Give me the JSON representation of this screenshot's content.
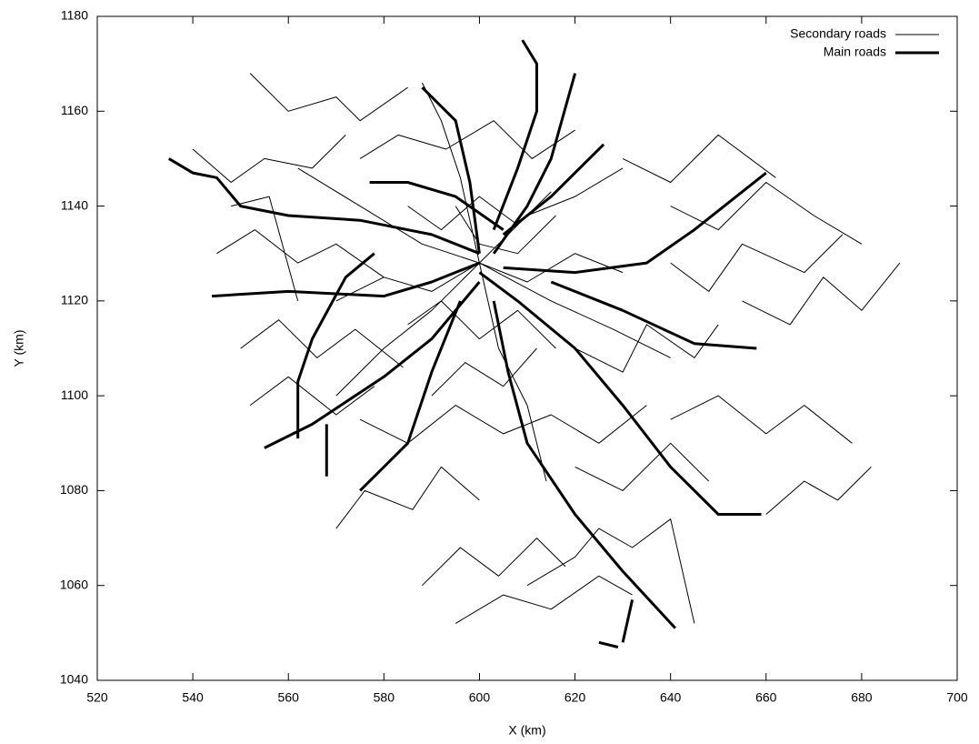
{
  "chart_data": {
    "type": "line",
    "xlabel": "X (km)",
    "ylabel": "Y (km)",
    "xlim": [
      520,
      700
    ],
    "xticks": [
      520,
      540,
      560,
      580,
      600,
      620,
      640,
      660,
      680,
      700
    ],
    "ylim": [
      1040,
      1180
    ],
    "yticks": [
      1040,
      1060,
      1080,
      1100,
      1120,
      1140,
      1160,
      1180
    ],
    "legend": "upper right",
    "series": [
      {
        "name": "Secondary roads",
        "color": "#000000",
        "x": [
          552,
          560,
          570,
          575,
          585,
          null,
          540,
          548,
          555,
          565,
          572,
          null,
          545,
          553,
          562,
          570,
          580,
          null,
          550,
          558,
          566,
          574,
          584,
          null,
          552,
          560,
          570,
          578,
          null,
          570,
          576,
          586,
          592,
          600,
          null,
          588,
          596,
          604,
          612,
          618,
          null,
          595,
          605,
          615,
          625,
          632,
          null,
          620,
          630,
          640,
          648,
          null,
          640,
          650,
          660,
          668,
          678,
          null,
          655,
          665,
          672,
          680,
          688,
          null,
          640,
          650,
          660,
          670,
          680,
          null,
          630,
          640,
          650,
          662,
          null,
          575,
          583,
          593,
          603,
          611,
          620,
          null,
          585,
          592,
          600,
          608,
          615,
          null,
          585,
          592,
          600,
          608,
          616,
          null,
          590,
          597,
          605,
          612,
          null,
          575,
          585,
          595,
          605,
          615,
          625,
          635,
          null,
          600,
          590,
          580,
          570,
          null,
          600,
          610,
          620,
          630,
          null,
          600,
          615,
          628,
          640,
          null,
          600,
          588,
          575,
          562,
          null,
          600,
          604,
          610,
          614,
          null,
          600,
          596,
          592,
          588,
          null,
          660,
          668,
          675,
          682,
          null,
          620,
          630,
          635,
          645,
          650,
          null,
          548,
          556,
          562,
          null,
          640,
          648,
          655,
          668,
          676,
          null,
          570,
          580,
          590,
          600,
          610,
          620,
          630,
          null,
          610,
          620,
          625,
          632,
          640,
          645,
          null,
          595,
          600,
          608,
          616
        ],
        "values": [
          1168,
          1160,
          1163,
          1158,
          1165,
          null,
          1152,
          1145,
          1150,
          1148,
          1155,
          null,
          1130,
          1135,
          1128,
          1132,
          1125,
          null,
          1110,
          1116,
          1108,
          1114,
          1106,
          null,
          1098,
          1104,
          1096,
          1102,
          null,
          1072,
          1080,
          1076,
          1085,
          1078,
          null,
          1060,
          1068,
          1062,
          1070,
          1064,
          null,
          1052,
          1058,
          1055,
          1062,
          1058,
          null,
          1085,
          1080,
          1090,
          1082,
          null,
          1095,
          1100,
          1092,
          1098,
          1090,
          null,
          1120,
          1115,
          1125,
          1118,
          1128,
          null,
          1140,
          1135,
          1145,
          1138,
          1132,
          null,
          1150,
          1145,
          1155,
          1146,
          null,
          1150,
          1155,
          1152,
          1158,
          1150,
          1156,
          null,
          1140,
          1135,
          1142,
          1136,
          1143,
          null,
          1115,
          1120,
          1112,
          1118,
          1110,
          null,
          1100,
          1107,
          1102,
          1110,
          null,
          1095,
          1090,
          1098,
          1092,
          1096,
          1090,
          1098,
          null,
          1128,
          1118,
          1110,
          1100,
          null,
          1128,
          1138,
          1142,
          1148,
          null,
          1128,
          1120,
          1114,
          1108,
          null,
          1128,
          1132,
          1140,
          1148,
          null,
          1128,
          1110,
          1098,
          1082,
          null,
          1128,
          1146,
          1158,
          1166,
          null,
          1075,
          1082,
          1078,
          1085,
          null,
          1110,
          1105,
          1115,
          1108,
          1115,
          null,
          1140,
          1142,
          1120,
          null,
          1128,
          1122,
          1132,
          1126,
          1134,
          null,
          1120,
          1125,
          1122,
          1128,
          1124,
          1130,
          1126,
          null,
          1060,
          1066,
          1072,
          1068,
          1074,
          1052,
          null,
          1140,
          1132,
          1130,
          1138
        ]
      },
      {
        "name": "Main roads",
        "color": "#000000",
        "x": [
          535,
          540,
          545,
          550,
          560,
          575,
          590,
          600,
          null,
          544,
          560,
          580,
          590,
          600,
          null,
          555,
          565,
          580,
          590,
          600,
          null,
          568,
          568,
          null,
          562,
          562,
          565,
          572,
          578,
          null,
          588,
          595,
          598,
          600,
          null,
          609,
          612,
          612,
          608,
          603,
          null,
          620,
          615,
          610,
          603,
          null,
          626,
          615,
          605,
          null,
          660,
          645,
          635,
          620,
          605,
          null,
          659,
          650,
          640,
          630,
          620,
          608,
          600,
          null,
          641,
          630,
          620,
          610,
          606,
          603,
          null,
          629,
          625,
          null,
          632,
          630,
          null,
          658,
          645,
          630,
          615,
          null,
          577,
          585,
          595,
          605,
          null,
          575,
          585,
          590,
          596
        ],
        "values": [
          1150,
          1147,
          1146,
          1140,
          1138,
          1137,
          1134,
          1130,
          null,
          1121,
          1122,
          1121,
          1124,
          1128,
          null,
          1089,
          1094,
          1104,
          1112,
          1124,
          null,
          1083,
          1094,
          null,
          1091,
          1103,
          1112,
          1125,
          1130,
          null,
          1165,
          1158,
          1145,
          1130,
          null,
          1175,
          1170,
          1160,
          1148,
          1135,
          null,
          1168,
          1150,
          1140,
          1130,
          null,
          1153,
          1142,
          1134,
          null,
          1147,
          1135,
          1128,
          1126,
          1127,
          null,
          1075,
          1075,
          1085,
          1098,
          1110,
          1120,
          1126,
          null,
          1051,
          1063,
          1075,
          1090,
          1105,
          1120,
          null,
          1047,
          1048,
          null,
          1057,
          1048,
          null,
          1110,
          1111,
          1118,
          1124,
          null,
          1145,
          1145,
          1142,
          1135,
          null,
          1080,
          1090,
          1105,
          1120
        ]
      }
    ]
  }
}
